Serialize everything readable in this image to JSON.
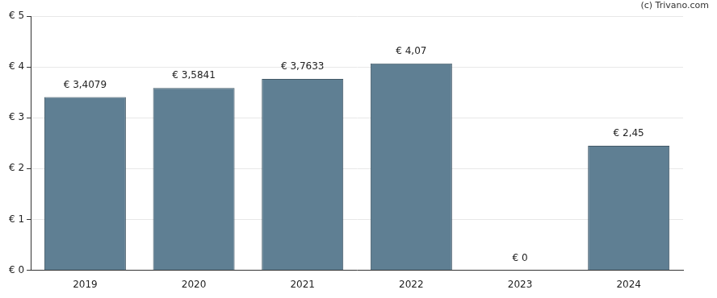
{
  "chart_data": {
    "type": "bar",
    "annotation": "(c) Trivano.com",
    "categories": [
      "2019",
      "2020",
      "2021",
      "2022",
      "2023",
      "2024"
    ],
    "values": [
      3.4079,
      3.5841,
      3.7633,
      4.07,
      0,
      2.45
    ],
    "value_labels": [
      "€ 3,4079",
      "€ 3,5841",
      "€ 3,7633",
      "€ 4,07",
      "€ 0",
      "€ 2,45"
    ],
    "data_labels": true,
    "color": "#5f7f93",
    "ylim": [
      0,
      5
    ],
    "yticks": [
      {
        "value": 0,
        "label": "€ 0"
      },
      {
        "value": 1,
        "label": "€ 1"
      },
      {
        "value": 2,
        "label": "€ 2"
      },
      {
        "value": 3,
        "label": "€ 3"
      },
      {
        "value": 4,
        "label": "€ 4"
      },
      {
        "value": 5,
        "label": "€ 5"
      }
    ],
    "grid": true
  }
}
